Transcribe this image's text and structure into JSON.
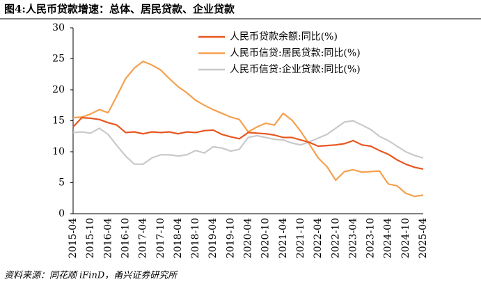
{
  "chart_data": {
    "type": "line",
    "title": "图4:人民币贷款增速：总体、居民贷款、企业贷款",
    "source": "资料来源：同花顺 iFinD，甬兴证券研究所",
    "categories": [
      "2015-04",
      null,
      "2015-10",
      null,
      "2016-04",
      null,
      "2016-10",
      null,
      "2017-04",
      null,
      "2017-10",
      null,
      "2018-04",
      null,
      "2018-10",
      null,
      "2019-04",
      null,
      "2019-10",
      null,
      "2020-04",
      null,
      "2020-10",
      null,
      "2021-04",
      null,
      "2021-10",
      null,
      "2022-04",
      null,
      "2022-10",
      null,
      "2023-04",
      null,
      "2023-10",
      null,
      "2024-04",
      null,
      "2024-10",
      null,
      "2025-04"
    ],
    "series": [
      {
        "name": "人民币贷款余额:同比(%)",
        "color": "#e8561f",
        "values": [
          14,
          15.5,
          15.4,
          15.2,
          14.7,
          14.3,
          13.1,
          13.2,
          12.9,
          13.2,
          13.1,
          13.2,
          12.9,
          13.2,
          13.1,
          13.4,
          13.5,
          12.8,
          12.4,
          12.1,
          13.1,
          13.0,
          12.9,
          12.7,
          12.3,
          12.3,
          11.9,
          11.5,
          10.9,
          11.0,
          11.1,
          11.3,
          11.8,
          11.1,
          10.9,
          10.2,
          9.6,
          8.7,
          8.0,
          7.5,
          7.2
        ]
      },
      {
        "name": "人民币信贷:居民贷款:同比(%)",
        "color": "#f6a04d",
        "values": [
          15.5,
          15.6,
          16.1,
          16.8,
          16.3,
          19,
          21.8,
          23.5,
          24.6,
          24,
          23.2,
          21.8,
          20.5,
          19.5,
          18.3,
          17.5,
          16.8,
          16.2,
          15.6,
          15.2,
          13.2,
          14,
          14.6,
          14.3,
          16.2,
          15.1,
          13.3,
          11.2,
          9,
          7.6,
          5.4,
          6.8,
          7.1,
          6.7,
          6.8,
          6.9,
          4.8,
          4.5,
          3.3,
          2.8,
          3.0
        ]
      },
      {
        "name": "人民币信贷:企业贷款:同比(%)",
        "color": "#c9c9c9",
        "values": [
          13.1,
          13.2,
          13,
          13.8,
          12.8,
          11,
          9.3,
          8,
          8,
          9,
          9.5,
          9.5,
          9.3,
          9.5,
          10.2,
          9.8,
          10.8,
          10.6,
          10.1,
          10.4,
          12.3,
          12.6,
          12.3,
          12,
          11.9,
          11.4,
          11.1,
          11.6,
          12.2,
          12.8,
          13.8,
          14.8,
          15,
          14.3,
          13.6,
          12.5,
          11.8,
          10.9,
          10,
          9.4,
          9.0
        ]
      }
    ],
    "ylim": [
      0,
      30
    ],
    "yticks": [
      0,
      5,
      10,
      15,
      20,
      25,
      30
    ],
    "grid": false
  }
}
